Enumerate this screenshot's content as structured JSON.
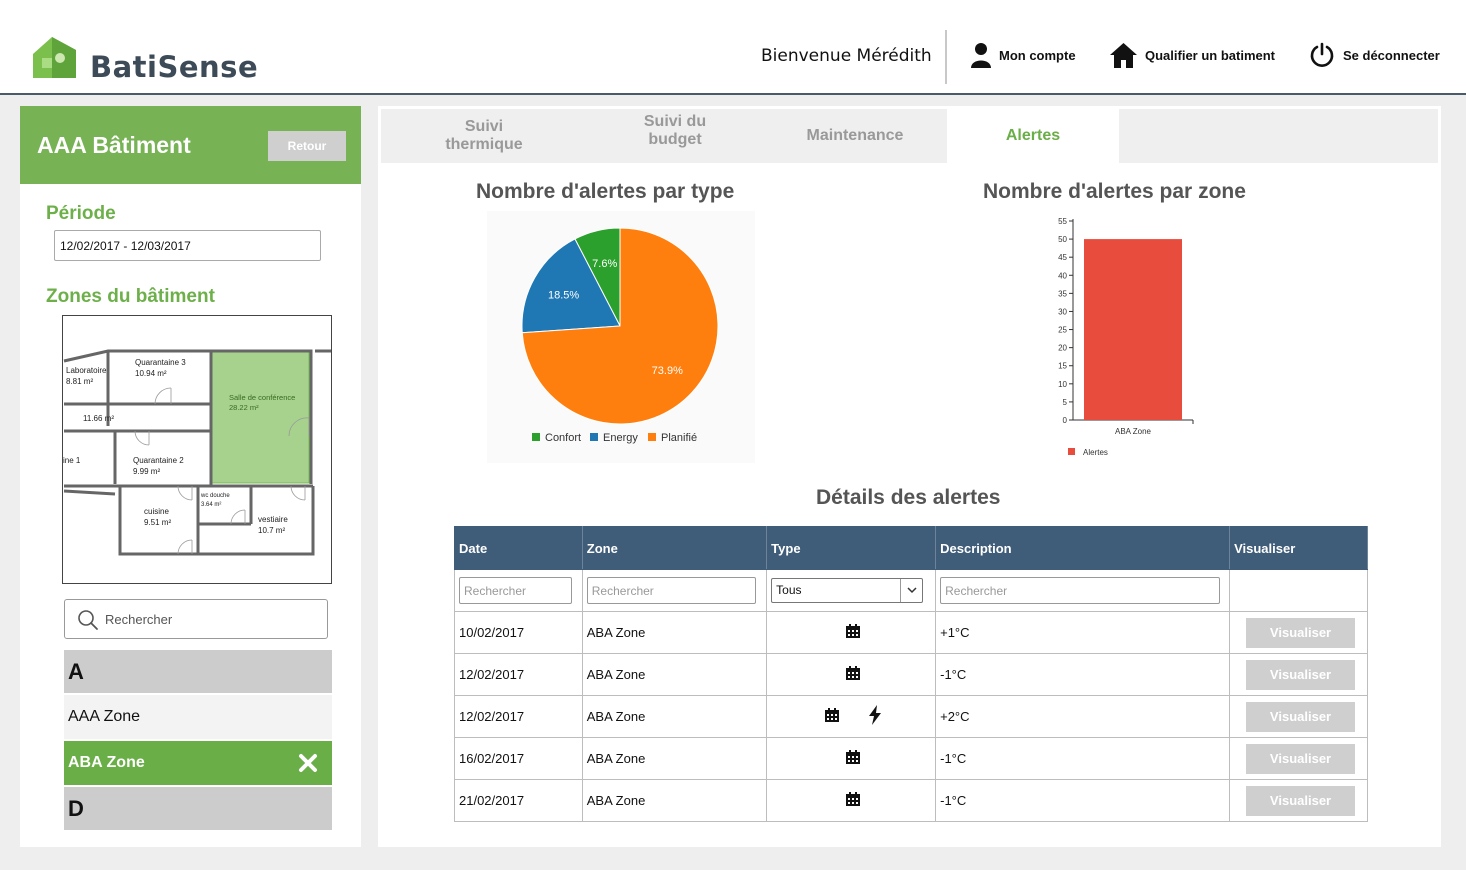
{
  "header": {
    "brand": "BatiSense",
    "welcome": "Bienvenue Mérédith",
    "nav": [
      {
        "label": "Mon compte",
        "icon": "user-icon"
      },
      {
        "label": "Qualifier un batiment",
        "icon": "home-icon"
      },
      {
        "label": "Se déconnecter",
        "icon": "power-icon"
      }
    ]
  },
  "sidebar": {
    "title": "AAA Bâtiment",
    "back_label": "Retour",
    "period_label": "Période",
    "period_value": "12/02/2017 - 12/03/2017",
    "zones_label": "Zones du bâtiment",
    "search_placeholder": "Rechercher",
    "floorplan": {
      "rooms": [
        {
          "name": "Laboratoire",
          "area": "8.81 m²"
        },
        {
          "name": "Quarantaine 3",
          "area": "10.94 m²"
        },
        {
          "name": "Salle de conférence",
          "area": "28.22 m²"
        },
        {
          "name": "",
          "area": "11.66 m²"
        },
        {
          "name": "ine 1",
          "area": ""
        },
        {
          "name": "Quarantaine 2",
          "area": "9.99 m²"
        },
        {
          "name": "wc douche",
          "area": "3.64 m²"
        },
        {
          "name": "cuisine",
          "area": "9.51 m²"
        },
        {
          "name": "vestiaire",
          "area": "10.7 m²"
        }
      ]
    },
    "groups": [
      {
        "letter": "A",
        "items": [
          {
            "label": "AAA Zone",
            "active": false
          },
          {
            "label": "ABA Zone",
            "active": true
          }
        ]
      },
      {
        "letter": "D",
        "items": []
      }
    ]
  },
  "tabs": [
    {
      "label": "Suivi thermique",
      "active": false
    },
    {
      "label": "Suivi du budget",
      "active": false
    },
    {
      "label": "Maintenance",
      "active": false
    },
    {
      "label": "Alertes",
      "active": true
    }
  ],
  "colors": {
    "green": "#6aae47",
    "header_blue": "#3f5c79",
    "confort": "#2ca02c",
    "energy": "#1f77b4",
    "planifie": "#ff7f0e",
    "bar": "#e74c3c"
  },
  "chart_data": [
    {
      "type": "pie",
      "title": "Nombre d'alertes par type",
      "slices": [
        {
          "label": "Confort",
          "value": 7.6,
          "display": "7.6%"
        },
        {
          "label": "Energy",
          "value": 18.5,
          "display": "18.5%"
        },
        {
          "label": "Planifié",
          "value": 73.9,
          "display": "73.9%"
        }
      ],
      "legend": "bottom"
    },
    {
      "type": "bar",
      "title": "Nombre d'alertes par zone",
      "categories": [
        "ABA Zone"
      ],
      "series": [
        {
          "name": "Alertes",
          "values": [
            50
          ]
        }
      ],
      "ylim": [
        0,
        55
      ],
      "yticks": [
        0,
        5,
        10,
        15,
        20,
        25,
        30,
        35,
        40,
        45,
        50,
        55
      ],
      "legend": "bottom-left"
    }
  ],
  "details": {
    "title": "Détails des alertes",
    "columns": [
      "Date",
      "Zone",
      "Type",
      "Description",
      "Visualiser"
    ],
    "filter_placeholder": "Rechercher",
    "type_filter": "Tous",
    "button_label": "Visualiser",
    "rows": [
      {
        "date": "10/02/2017",
        "zone": "ABA Zone",
        "types": [
          "calendar-icon"
        ],
        "description": "+1°C"
      },
      {
        "date": "12/02/2017",
        "zone": "ABA Zone",
        "types": [
          "calendar-icon"
        ],
        "description": "-1°C"
      },
      {
        "date": "12/02/2017",
        "zone": "ABA Zone",
        "types": [
          "calendar-icon",
          "lightning-icon"
        ],
        "description": "+2°C"
      },
      {
        "date": "16/02/2017",
        "zone": "ABA Zone",
        "types": [
          "calendar-icon"
        ],
        "description": "-1°C"
      },
      {
        "date": "21/02/2017",
        "zone": "ABA Zone",
        "types": [
          "calendar-icon"
        ],
        "description": "-1°C"
      }
    ]
  }
}
